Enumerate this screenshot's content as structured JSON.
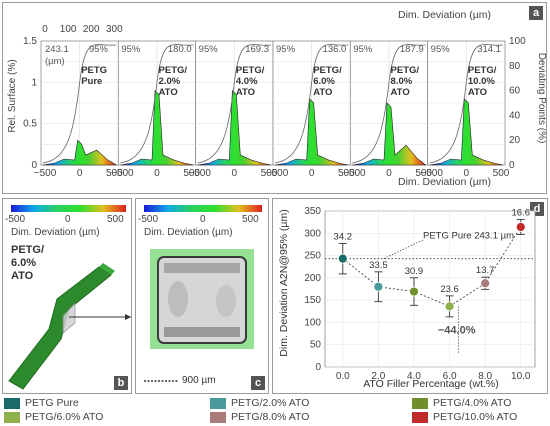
{
  "panel_a": {
    "label": "a",
    "top_axis_title": "Dim. Deviation (µm)",
    "bottom_axis_title": "Dim. Deviation (µm)",
    "left_axis_title": "Rel. Surface (%)",
    "right_axis_title": "Deviating Points (%)",
    "top_ticks": [
      "0",
      "100",
      "200",
      "300"
    ],
    "left_ticks": [
      "0",
      "0.5",
      "1",
      "1.5"
    ],
    "right_ticks": [
      "0",
      "20",
      "40",
      "60",
      "80",
      "100"
    ]
  },
  "panel_b": {
    "label": "b",
    "colorbar_ticks": [
      "-500",
      "0",
      "500"
    ],
    "colorbar_title": "Dim. Deviation (µm)",
    "sample_label": "PETG/ 6.0% ATO"
  },
  "panel_c": {
    "label": "c",
    "colorbar_ticks": [
      "-500",
      "0",
      "500"
    ],
    "colorbar_title": "Dim. Deviation (µm)",
    "scale_bar": "900 µm"
  },
  "panel_d": {
    "label": "d"
  },
  "chart_data": [
    {
      "type": "area",
      "panel": "a",
      "xlim": [
        -500,
        500
      ],
      "ylim": [
        0,
        1.5
      ],
      "x_ticks": [
        "−500",
        "0",
        "500"
      ],
      "subplots": [
        {
          "name": "PETG Pure",
          "p95_label": "95%",
          "p95_value": "243.1 (µm)",
          "peak": 0.3
        },
        {
          "name": "PETG/ 2.0% ATO",
          "p95_label": "95%",
          "p95_value": "180.0",
          "peak": 0.9
        },
        {
          "name": "PETG/ 4.0% ATO",
          "p95_label": "95%",
          "p95_value": "169.3",
          "peak": 0.9
        },
        {
          "name": "PETG/ 6.0% ATO",
          "p95_label": "95%",
          "p95_value": "136.0",
          "peak": 0.8
        },
        {
          "name": "PETG/ 8.0% ATO",
          "p95_label": "95%",
          "p95_value": "187.9",
          "peak": 0.75
        },
        {
          "name": "PETG/ 10.0% ATO",
          "p95_label": "95%",
          "p95_value": "314.1",
          "peak": 0.8
        }
      ]
    },
    {
      "type": "scatter",
      "panel": "d",
      "xlabel": "ATO Filler Percentage (wt.%)",
      "ylabel": "Dim. Deviation A2N@95% (µm)",
      "xlim": [
        -1,
        10.8
      ],
      "ylim": [
        0,
        350
      ],
      "x_ticks": [
        "0.0",
        "2.0",
        "4.0",
        "6.0",
        "8.0",
        "10.0"
      ],
      "y_ticks": [
        "0",
        "50",
        "100",
        "150",
        "200",
        "250",
        "300",
        "350"
      ],
      "x": [
        0,
        2,
        4,
        6,
        8,
        10
      ],
      "values": [
        243.1,
        180.0,
        169.3,
        136.0,
        187.9,
        314.1
      ],
      "errors": [
        34.2,
        33.5,
        30.9,
        23.6,
        13.7,
        16.6
      ],
      "error_labels": [
        "34.2",
        "33.5",
        "30.9",
        "23.6",
        "13.7",
        "16.6"
      ],
      "colors": [
        "#1b6a6a",
        "#4a9a9c",
        "#6f8f2c",
        "#8fb04a",
        "#a87a7a",
        "#c02a2a"
      ],
      "reference_line": {
        "value": 243.1,
        "label": "PETG Pure 243.1 µm"
      },
      "annotation": "−44.0%"
    }
  ],
  "legend": [
    {
      "label": "PETG Pure",
      "color": "#1b6a6a"
    },
    {
      "label": "PETG/2.0% ATO",
      "color": "#4a9a9c"
    },
    {
      "label": "PETG/4.0% ATO",
      "color": "#6f8f2c"
    },
    {
      "label": "PETG/6.0% ATO",
      "color": "#8fb04a"
    },
    {
      "label": "PETG/8.0% ATO",
      "color": "#a87a7a"
    },
    {
      "label": "PETG/10.0% ATO",
      "color": "#c02a2a"
    }
  ]
}
